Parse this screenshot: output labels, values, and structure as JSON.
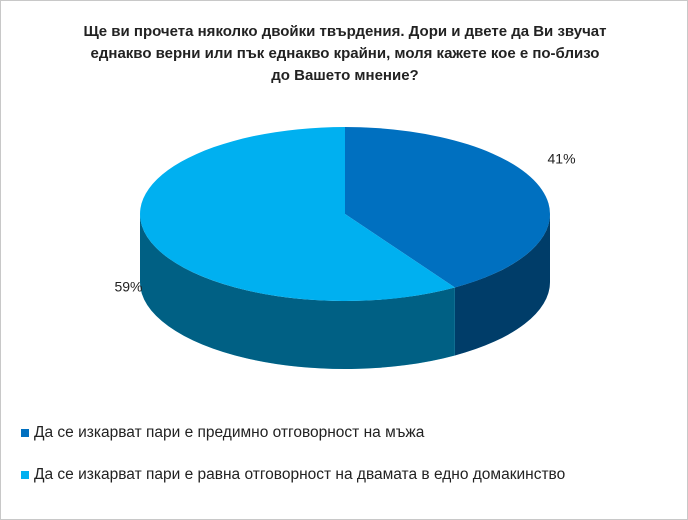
{
  "chart_data": {
    "type": "pie3d",
    "title": "Ще ви прочета няколко двойки твърдения. Дори и двете да Ви звучат еднакво верни или пък еднакво крайни, моля кажете кое е по-близо до Вашето мнение?",
    "categories": [
      "Да се изкарват пари е предимно отговорност на мъжа",
      "Да се изкарват пари е равна отговорност на двамата в едно домакинство"
    ],
    "values": [
      41,
      59
    ],
    "value_labels": [
      "41%",
      "59%"
    ],
    "colors": [
      "#0070c0",
      "#00b0f0"
    ],
    "legend": "bottom"
  }
}
